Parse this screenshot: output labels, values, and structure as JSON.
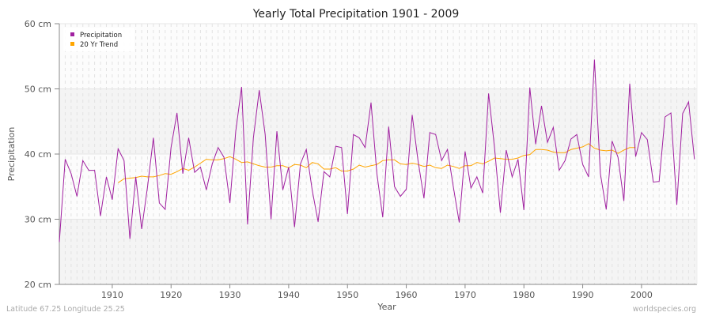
{
  "chart_data": {
    "type": "line",
    "title": "Yearly Total Precipitation 1901 - 2009",
    "xlabel": "Year",
    "ylabel": "Precipitation",
    "xlim": [
      1901,
      2009
    ],
    "ylim": [
      20,
      60
    ],
    "y_ticks": [
      20,
      30,
      40,
      50,
      60
    ],
    "y_tick_labels": [
      "20 cm",
      "30 cm",
      "40 cm",
      "50 cm",
      "60 cm"
    ],
    "x_ticks": [
      1910,
      1920,
      1930,
      1940,
      1950,
      1960,
      1970,
      1980,
      1990,
      2000
    ],
    "x_tick_labels": [
      "1910",
      "1920",
      "1930",
      "1940",
      "1950",
      "1960",
      "1970",
      "1980",
      "1990",
      "2000"
    ],
    "grid": true,
    "legend_position": "top-left",
    "series": [
      {
        "name": "Precipitation",
        "color": "#a020a0",
        "x_start": 1901,
        "values": [
          26.5,
          39.2,
          37,
          33.5,
          39,
          37.5,
          37.5,
          30.5,
          36.5,
          33,
          40.8,
          39,
          27,
          36.5,
          28.5,
          35,
          42.5,
          32.5,
          31.5,
          41,
          46.3,
          37,
          42.5,
          37.2,
          38,
          34.5,
          38.5,
          41,
          39.5,
          32.5,
          43.5,
          50.3,
          29.2,
          42.5,
          49.8,
          43,
          30,
          43.5,
          34.5,
          38,
          28.8,
          38.5,
          40.7,
          34.5,
          29.6,
          37.3,
          36.5,
          41.2,
          41,
          30.8,
          43,
          42.5,
          41,
          47.9,
          37,
          30.3,
          44.2,
          35,
          33.5,
          34.6,
          46,
          39,
          33.2,
          43.3,
          43,
          39,
          40.7,
          35,
          29.5,
          40.4,
          34.8,
          36.5,
          34,
          49.3,
          41,
          31,
          40.6,
          36.5,
          39.2,
          31.4,
          50.2,
          41.5,
          47.4,
          41.8,
          44.1,
          37.5,
          39,
          42.3,
          43,
          38.4,
          36.5,
          54.5,
          37,
          31.5,
          42,
          39.5,
          32.8,
          50.8,
          39.6,
          43.3,
          42.2,
          35.7,
          35.8,
          45.7,
          46.3,
          32.2,
          46.2,
          48,
          39.2
        ]
      },
      {
        "name": "20 Yr Trend",
        "color": "#ffa500",
        "x_start": 1911,
        "values": [
          35.6,
          36.2,
          36.3,
          36.4,
          36.6,
          36.5,
          36.5,
          36.7,
          37.0,
          36.9,
          37.3,
          37.8,
          37.5,
          38.0,
          38.6,
          39.2,
          39.1,
          39.1,
          39.3,
          39.6,
          39.2,
          38.7,
          38.8,
          38.5,
          38.2,
          38.0,
          38.0,
          38.2,
          38.2,
          37.9,
          38.4,
          38.3,
          37.9,
          38.7,
          38.5,
          37.7,
          37.7,
          37.9,
          37.4,
          37.4,
          37.7,
          38.3,
          38.0,
          38.2,
          38.4,
          39.0,
          39.1,
          39.1,
          38.5,
          38.4,
          38.6,
          38.4,
          38.1,
          38.3,
          37.9,
          37.8,
          38.3,
          38.1,
          37.8,
          38.2,
          38.2,
          38.7,
          38.5,
          38.9,
          39.4,
          39.3,
          39.2,
          39.2,
          39.4,
          39.8,
          39.9,
          40.7,
          40.7,
          40.6,
          40.3,
          40.2,
          40.2,
          40.7,
          40.9,
          41.1,
          41.6,
          40.9,
          40.6,
          40.5,
          40.6,
          40.1,
          40.6,
          41.0,
          41.0
        ]
      }
    ]
  },
  "footer": {
    "location": "Latitude 67.25 Longitude 25.25",
    "source": "worldspecies.org"
  }
}
